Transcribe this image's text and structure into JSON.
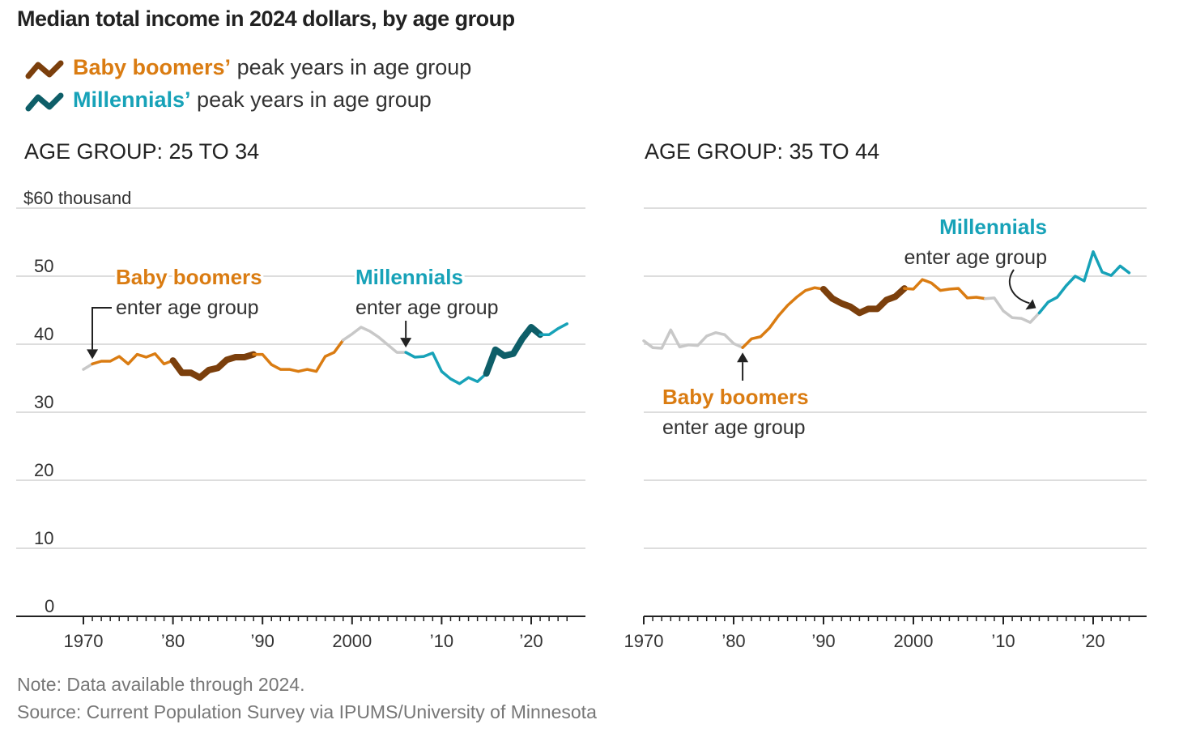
{
  "chart_data": {
    "type": "line",
    "title": "Median total income in 2024 dollars, by age group",
    "legend": [
      {
        "name": "Baby boomers’",
        "suffix": " peak years in age group",
        "color": "#DA7C12",
        "swatch": "#7B3F0C"
      },
      {
        "name": "Millennials’",
        "suffix": " peak years in age group",
        "color": "#17A2B8",
        "swatch": "#0E5E68"
      }
    ],
    "colors": {
      "gray": "#C8C8C8",
      "orange": "#DA7C12",
      "brown": "#7B3F0C",
      "teal": "#17A2B8",
      "darkteal": "#0E5E68"
    },
    "yticks": [
      0,
      10,
      20,
      30,
      40,
      50,
      60
    ],
    "ytick_labels": [
      "0",
      "10",
      "20",
      "30",
      "40",
      "50",
      "$60 thousand"
    ],
    "ylim": [
      0,
      60
    ],
    "xlim": [
      1970,
      2024
    ],
    "xticks": [
      1970,
      1980,
      1990,
      2000,
      2010,
      2020
    ],
    "xtick_labels": [
      "1970",
      "’80",
      "’90",
      "2000",
      "’10",
      "’20"
    ],
    "panels": [
      {
        "title": "AGE GROUP: 25 TO 34",
        "x_start": 1970,
        "values": [
          36.3,
          37.1,
          37.5,
          37.5,
          38.2,
          37.1,
          38.5,
          38.1,
          38.6,
          37.1,
          37.6,
          35.8,
          35.8,
          35.1,
          36.2,
          36.5,
          37.7,
          38.1,
          38.1,
          38.5,
          38.5,
          37.0,
          36.3,
          36.3,
          36.0,
          36.3,
          36.0,
          38.2,
          38.8,
          40.6,
          41.5,
          42.5,
          41.9,
          41.0,
          39.9,
          38.8,
          38.8,
          38.1,
          38.2,
          38.7,
          36.0,
          34.9,
          34.2,
          35.1,
          34.5,
          35.7,
          39.2,
          38.3,
          38.6,
          40.8,
          42.5,
          41.4,
          41.4,
          42.3,
          43.0
        ],
        "segments": [
          [
            "gray",
            1970,
            1971
          ],
          [
            "orange",
            1971,
            1980
          ],
          [
            "brown",
            1980,
            1989
          ],
          [
            "orange",
            1989,
            1999
          ],
          [
            "gray",
            1999,
            2006
          ],
          [
            "teal",
            2006,
            2015
          ],
          [
            "darkteal",
            2015,
            2021
          ],
          [
            "teal",
            2021,
            2024
          ]
        ],
        "annotations": [
          {
            "head": "Baby boomers",
            "text": "enter age group",
            "color": "orange",
            "year": 1971
          },
          {
            "head": "Millennials",
            "text": "enter age group",
            "color": "teal",
            "year": 2006
          }
        ]
      },
      {
        "title": "AGE GROUP: 35 TO 44",
        "x_start": 1970,
        "values": [
          40.5,
          39.5,
          39.4,
          42.1,
          39.6,
          39.9,
          39.8,
          41.2,
          41.7,
          41.4,
          40.1,
          39.5,
          40.8,
          41.1,
          42.4,
          44.2,
          45.7,
          46.9,
          47.9,
          48.3,
          48.1,
          46.7,
          46.0,
          45.5,
          44.6,
          45.2,
          45.2,
          46.5,
          47.0,
          48.2,
          48.1,
          49.5,
          49.0,
          47.9,
          48.1,
          48.2,
          46.8,
          46.9,
          46.7,
          46.8,
          44.9,
          43.9,
          43.8,
          43.2,
          44.6,
          46.2,
          46.9,
          48.6,
          50.0,
          49.3,
          53.6,
          50.6,
          50.1,
          51.5,
          50.5
        ],
        "segments": [
          [
            "gray",
            1970,
            1981
          ],
          [
            "orange",
            1981,
            1990
          ],
          [
            "brown",
            1990,
            1999
          ],
          [
            "orange",
            1999,
            2008
          ],
          [
            "gray",
            2008,
            2014
          ],
          [
            "teal",
            2014,
            2024
          ]
        ],
        "annotations": [
          {
            "head": "Baby boomers",
            "text": "enter age group",
            "color": "orange",
            "year": 1981
          },
          {
            "head": "Millennials",
            "text": "enter age group",
            "color": "teal",
            "year": 2014
          }
        ]
      }
    ]
  },
  "notes": {
    "note": "Note: Data available through 2024.",
    "source": "Source: Current Population Survey via IPUMS/University of Minnesota"
  }
}
